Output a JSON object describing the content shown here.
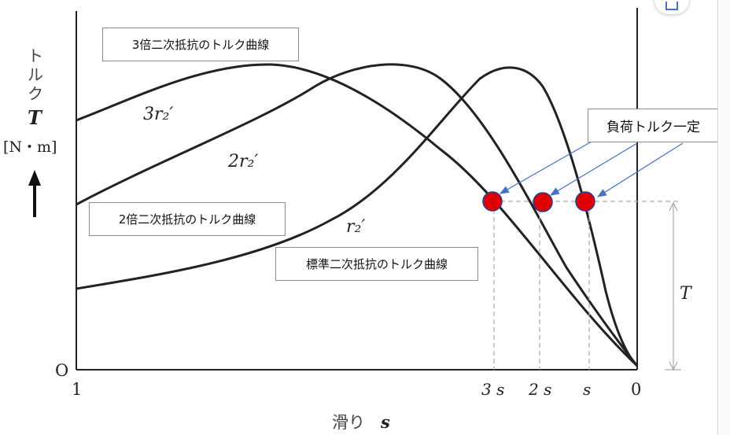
{
  "chart": {
    "y_axis_label_vertical": [
      "ト",
      "ル",
      "ク"
    ],
    "y_axis_symbol": "T",
    "y_axis_unit": "[N・m]",
    "origin_label": "O",
    "x_axis_label": "滑り",
    "x_axis_symbol": "s",
    "x_ticks": [
      "1",
      "3 s",
      "2 s",
      "s",
      "0"
    ],
    "curve_labels": [
      "3r₂′",
      "2r₂′",
      "r₂′"
    ],
    "torque_marker": "T"
  },
  "callouts": {
    "triple": "3倍二次抵抗のトルク曲線",
    "double": "2倍二次抵抗のトルク曲線",
    "standard": "標準二次抵抗のトルク曲線",
    "load": "負荷トルク一定"
  },
  "colors": {
    "curve": "#222222",
    "marker": "#e00000",
    "arrow": "#4472c4",
    "dash": "#999999"
  },
  "icons": {
    "corner": "share-icon"
  }
}
